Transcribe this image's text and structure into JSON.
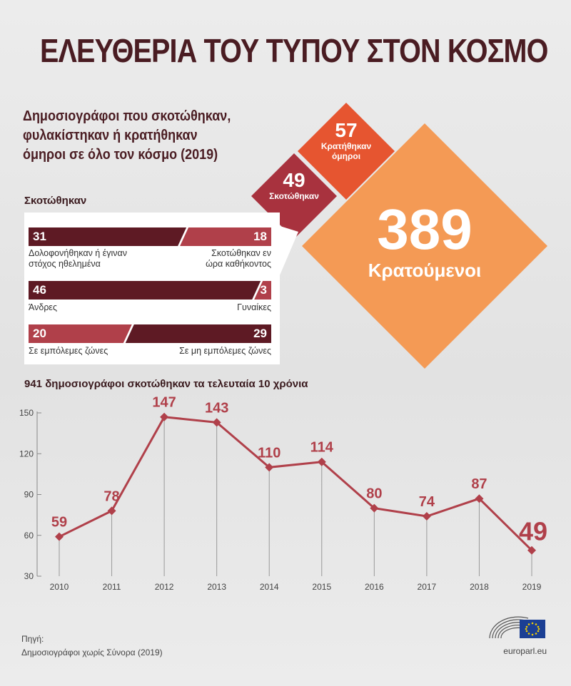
{
  "title": "ΕΛΕΥΘΕΡΙΑ ΤΟΥ ΤΥΠΟΥ ΣΤΟΝ ΚΟΣΜΟ",
  "subtitle": [
    "Δημοσιογράφοι που σκοτώθηκαν,",
    "φυλακίστηκαν ή κρατήθηκαν",
    "όμηροι σε όλο τον κόσμο (2019)"
  ],
  "killed_section": {
    "label": "Σκοτώθηκαν",
    "bars": [
      {
        "left_value": 31,
        "right_value": 18,
        "left_caption": [
          "Δολοφονήθηκαν ή έγιναν",
          "στόχος ηθελημένα"
        ],
        "right_caption": [
          "Σκοτώθηκαν εν",
          "ώρα καθήκοντος"
        ],
        "left_color": "#5e1a24",
        "right_color": "#b0404a"
      },
      {
        "left_value": 46,
        "right_value": 3,
        "left_caption": [
          "Άνδρες"
        ],
        "right_caption": [
          "Γυναίκες"
        ],
        "left_color": "#5e1a24",
        "right_color": "#b0404a"
      },
      {
        "left_value": 20,
        "right_value": 29,
        "left_caption": [
          "Σε εμπόλεμες ζώνες"
        ],
        "right_caption": [
          "Σε μη εμπόλεμες ζώνες"
        ],
        "left_color": "#b0404a",
        "right_color": "#5e1a24"
      }
    ]
  },
  "diamonds": {
    "hostages": {
      "value": "57",
      "label": [
        "Κρατήθηκαν",
        "όμηροι"
      ],
      "color": "#e65530"
    },
    "killed": {
      "value": "49",
      "label": "Σκοτώθηκαν",
      "color": "#a8323e"
    },
    "detained": {
      "value": "389",
      "label": "Κρατούμενοι",
      "color": "#f49a55"
    }
  },
  "chart_data": {
    "type": "line",
    "title": "941 δημοσιογράφοι σκοτώθηκαν τα τελευταία 10 χρόνια",
    "x": [
      "2010",
      "2011",
      "2012",
      "2013",
      "2014",
      "2015",
      "2016",
      "2017",
      "2018",
      "2019"
    ],
    "values": [
      59,
      78,
      147,
      143,
      110,
      114,
      80,
      74,
      87,
      49
    ],
    "yticks": [
      30,
      60,
      90,
      120,
      150
    ],
    "ylim": [
      30,
      150
    ],
    "color": "#b0404a",
    "grid": false
  },
  "source": {
    "label": "Πηγή:",
    "text": "Δημοσιογράφοι χωρίς Σύνορα (2019)"
  },
  "site": "europarl.eu"
}
